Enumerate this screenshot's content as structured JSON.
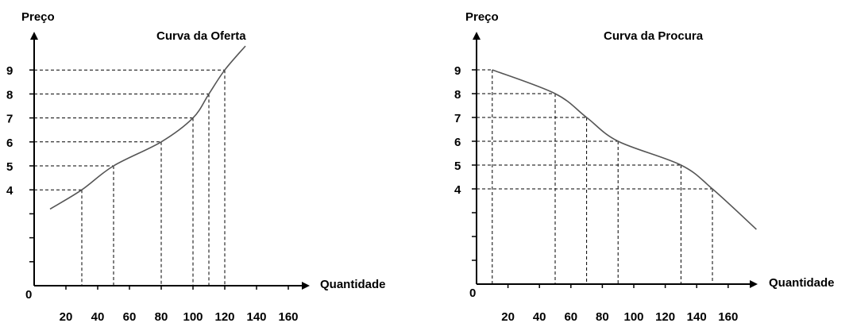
{
  "colors": {
    "axis": "#000000",
    "curve": "#555555",
    "guide": "#000000",
    "background": "#ffffff"
  },
  "chart_data": [
    {
      "type": "line",
      "title": "Curva da Oferta",
      "xlabel": "Quantidade",
      "ylabel": "Preço",
      "origin_label": "0",
      "xticks": [
        20,
        40,
        60,
        80,
        100,
        120,
        140,
        160
      ],
      "yticks": [
        4,
        5,
        6,
        7,
        8,
        9
      ],
      "xlim": [
        0,
        170
      ],
      "ylim": [
        0,
        10
      ],
      "grid": false,
      "series": [
        {
          "x": [
            10,
            30,
            50,
            80,
            100,
            110,
            120,
            133
          ],
          "y": [
            3.2,
            4,
            5,
            6,
            7,
            8,
            9,
            10
          ]
        }
      ],
      "guides": [
        {
          "x": 30,
          "y": 4
        },
        {
          "x": 50,
          "y": 5
        },
        {
          "x": 80,
          "y": 6
        },
        {
          "x": 100,
          "y": 7
        },
        {
          "x": 110,
          "y": 8
        },
        {
          "x": 120,
          "y": 9
        }
      ]
    },
    {
      "type": "line",
      "title": "Curva da Procura",
      "xlabel": "Quantidade",
      "ylabel": "Preço",
      "origin_label": "0",
      "xticks": [
        20,
        40,
        60,
        80,
        100,
        120,
        140,
        160
      ],
      "yticks": [
        4,
        5,
        6,
        7,
        8,
        9
      ],
      "xlim": [
        0,
        170
      ],
      "ylim": [
        0,
        10
      ],
      "grid": false,
      "series": [
        {
          "x": [
            10,
            50,
            70,
            90,
            130,
            150,
            178
          ],
          "y": [
            9,
            8,
            7,
            6,
            5,
            4,
            2.3
          ]
        }
      ],
      "guides": [
        {
          "x": 10,
          "y": 9
        },
        {
          "x": 50,
          "y": 8
        },
        {
          "x": 70,
          "y": 7
        },
        {
          "x": 90,
          "y": 6
        },
        {
          "x": 130,
          "y": 5
        },
        {
          "x": 150,
          "y": 4
        }
      ]
    }
  ]
}
